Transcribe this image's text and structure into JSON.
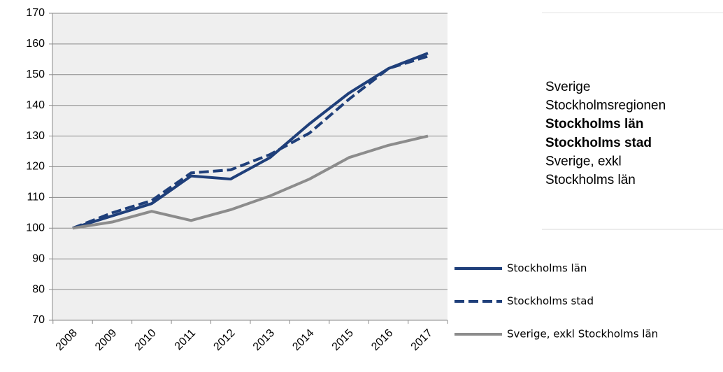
{
  "chart_data": {
    "type": "line",
    "categories": [
      "2008",
      "2009",
      "2010",
      "2011",
      "2012",
      "2013",
      "2014",
      "2015",
      "2016",
      "2017"
    ],
    "series": [
      {
        "name": "Stockholms län",
        "color": "#1f3f7a",
        "dashed": false,
        "values": [
          100,
          104,
          108,
          117,
          116,
          123,
          134,
          144,
          152,
          157
        ]
      },
      {
        "name": "Stockholms stad",
        "color": "#1f3f7a",
        "dashed": true,
        "values": [
          100,
          105,
          109,
          118,
          119,
          124,
          131,
          142,
          152,
          156
        ]
      },
      {
        "name": "Sverige, exkl Stockholms län",
        "color": "#8c8c8c",
        "dashed": false,
        "values": [
          100,
          102,
          105.5,
          102.5,
          106,
          110.5,
          116,
          123,
          127,
          130
        ]
      }
    ],
    "ylim": [
      70,
      170
    ],
    "yticks": [
      70,
      80,
      90,
      100,
      110,
      120,
      130,
      140,
      150,
      160,
      170
    ],
    "grid": true
  },
  "side_panel": {
    "items": [
      {
        "text": "Sverige",
        "bold": false
      },
      {
        "text": "Stockholmsregionen",
        "bold": false
      },
      {
        "text": "Stockholms län",
        "bold": true
      },
      {
        "text": "Stockholms stad",
        "bold": true
      },
      {
        "text": "Sverige, exkl",
        "bold": false
      },
      {
        "text": "Stockholms län",
        "bold": false
      }
    ]
  }
}
